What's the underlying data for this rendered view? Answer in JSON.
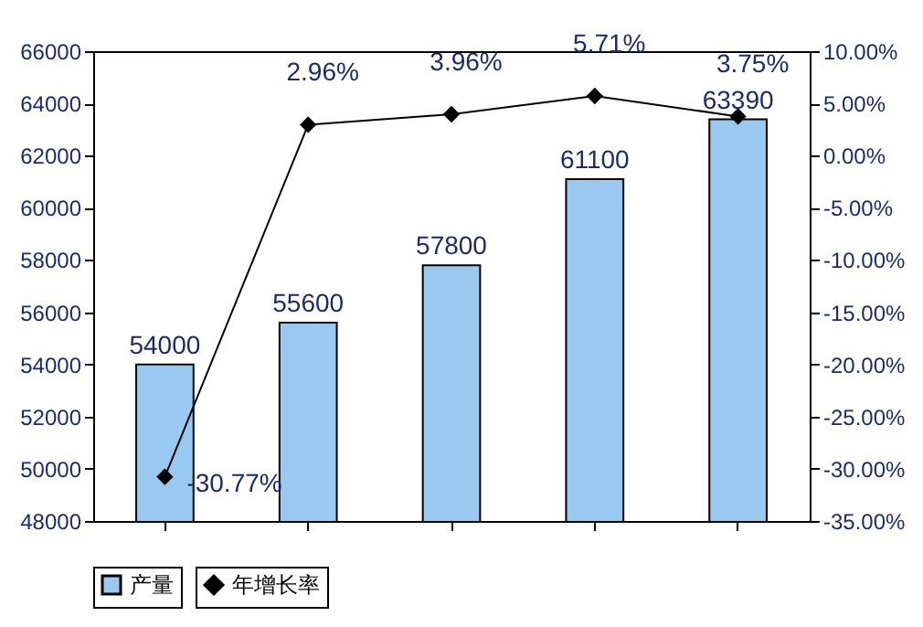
{
  "chart_data": {
    "type": "bar",
    "categories": [
      null,
      null,
      null,
      null,
      null
    ],
    "series": [
      {
        "name": "产量",
        "color": "#99c9f0",
        "values": [
          54000,
          55600,
          57800,
          61100,
          63390
        ]
      },
      {
        "name": "年增长率",
        "type": "line",
        "axis": "y2",
        "color": "#000000",
        "marker": "diamond",
        "values": [
          -30.77,
          2.96,
          3.96,
          5.71,
          3.75
        ]
      }
    ],
    "ylim": [
      48000,
      66000
    ],
    "yticks": [
      48000,
      50000,
      52000,
      54000,
      56000,
      58000,
      60000,
      62000,
      64000,
      66000
    ],
    "y2lim": [
      -35,
      10
    ],
    "y2ticks": [
      {
        "value": -35,
        "label": "-35.00%"
      },
      {
        "value": -30,
        "label": "-30.00%"
      },
      {
        "value": -25,
        "label": "-25.00%"
      },
      {
        "value": -20,
        "label": "-20.00%"
      },
      {
        "value": -15,
        "label": "-15.00%"
      },
      {
        "value": -10,
        "label": "-10.00%"
      },
      {
        "value": -5,
        "label": "-5.00%"
      },
      {
        "value": 0,
        "label": "0.00%"
      },
      {
        "value": 5,
        "label": "5.00%"
      },
      {
        "value": 10,
        "label": "10.00%"
      }
    ],
    "value_labels": [
      [
        "54000",
        "55600",
        "57800",
        "61100",
        "63390"
      ],
      [
        "-30.77%",
        "2.96%",
        "3.96%",
        "5.71%",
        "3.75%"
      ]
    ],
    "legend": "bottom",
    "grid": false
  }
}
